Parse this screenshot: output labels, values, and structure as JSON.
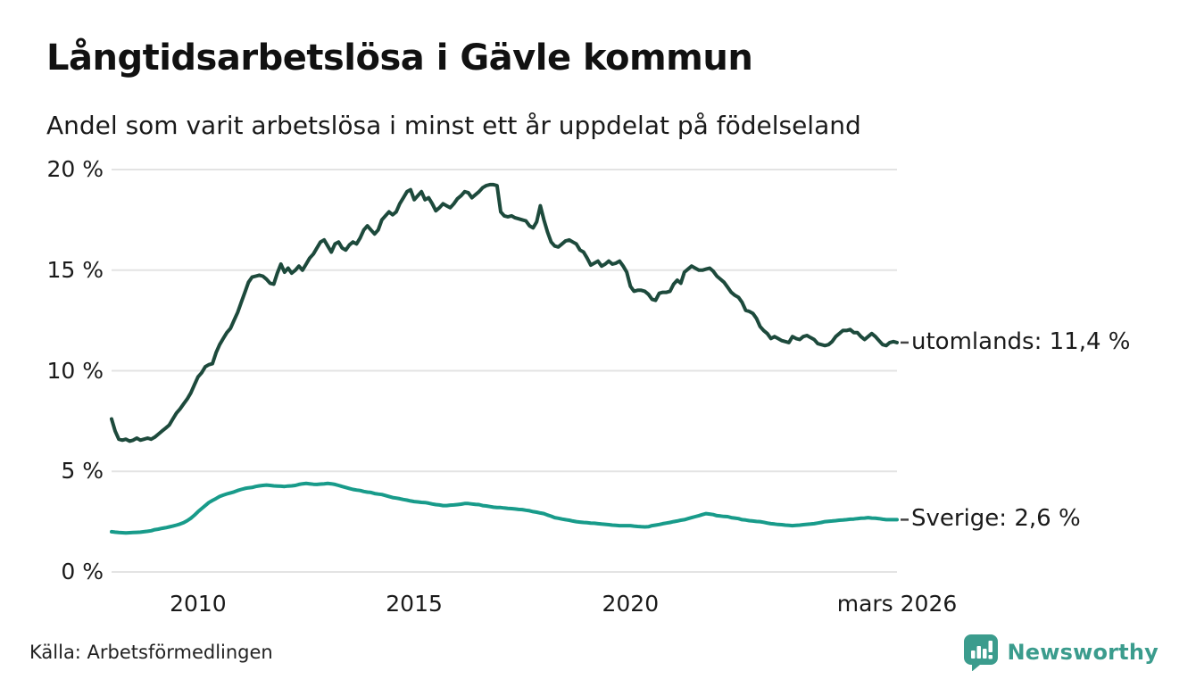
{
  "title": "Långtidsarbetslösa i Gävle kommun",
  "subtitle": "Andel som varit arbetslösa i minst ett år uppdelat på födelseland",
  "source": "Källa: Arbetsförmedlingen",
  "branding": {
    "name": "Newsworthy",
    "color": "#3b9c8d",
    "logo_icon": "bar-chart-pin-icon"
  },
  "chart_data": {
    "type": "line",
    "title": "Långtidsarbetslösa i Gävle kommun",
    "subtitle": "Andel som varit arbetslösa i minst ett år uppdelat på födelseland",
    "unit": "%",
    "grid": "horizontal",
    "grid_color": "#e3e3e3",
    "xlim": [
      2008.0,
      2026.1667
    ],
    "ylim": [
      0,
      20
    ],
    "x_frequency": "monthly",
    "x_start": 2008.0,
    "x_end_label": "mars 2026",
    "yticks": [
      {
        "value": 0,
        "label": "0 %"
      },
      {
        "value": 5,
        "label": "5 %"
      },
      {
        "value": 10,
        "label": "10 %"
      },
      {
        "value": 15,
        "label": "15 %"
      },
      {
        "value": 20,
        "label": "20 %"
      }
    ],
    "xticks": [
      {
        "x": 2010,
        "label": "2010"
      },
      {
        "x": 2015,
        "label": "2015"
      },
      {
        "x": 2020,
        "label": "2020"
      },
      {
        "x": 2026.1667,
        "label": "mars 2026"
      }
    ],
    "series": [
      {
        "name": "utomlands",
        "label": "utomlands: 11,4 %",
        "end_value": 11.4,
        "color": "#1d4a3c",
        "values": [
          7.6,
          7.0,
          6.6,
          6.55,
          6.6,
          6.5,
          6.55,
          6.65,
          6.55,
          6.6,
          6.65,
          6.6,
          6.7,
          6.85,
          7.0,
          7.15,
          7.3,
          7.6,
          7.9,
          8.1,
          8.35,
          8.6,
          8.9,
          9.3,
          9.7,
          9.9,
          10.2,
          10.3,
          10.35,
          10.9,
          11.3,
          11.6,
          11.9,
          12.1,
          12.5,
          12.9,
          13.4,
          13.9,
          14.4,
          14.65,
          14.7,
          14.75,
          14.7,
          14.55,
          14.35,
          14.3,
          14.85,
          15.3,
          14.9,
          15.1,
          14.85,
          15.0,
          15.2,
          15.0,
          15.3,
          15.6,
          15.8,
          16.1,
          16.4,
          16.5,
          16.2,
          15.9,
          16.3,
          16.4,
          16.1,
          16.0,
          16.25,
          16.4,
          16.3,
          16.6,
          17.0,
          17.2,
          17.0,
          16.8,
          17.0,
          17.5,
          17.7,
          17.9,
          17.75,
          17.9,
          18.3,
          18.6,
          18.9,
          19.0,
          18.5,
          18.7,
          18.9,
          18.5,
          18.6,
          18.3,
          17.95,
          18.1,
          18.3,
          18.2,
          18.1,
          18.3,
          18.55,
          18.7,
          18.9,
          18.85,
          18.6,
          18.75,
          18.9,
          19.1,
          19.2,
          19.25,
          19.25,
          19.2,
          17.9,
          17.7,
          17.65,
          17.7,
          17.6,
          17.55,
          17.5,
          17.45,
          17.2,
          17.1,
          17.4,
          18.2,
          17.5,
          16.9,
          16.4,
          16.2,
          16.15,
          16.3,
          16.45,
          16.5,
          16.4,
          16.3,
          16.0,
          15.9,
          15.6,
          15.25,
          15.35,
          15.45,
          15.2,
          15.3,
          15.45,
          15.3,
          15.35,
          15.45,
          15.2,
          14.9,
          14.2,
          13.95,
          14.0,
          14.0,
          13.95,
          13.8,
          13.55,
          13.5,
          13.85,
          13.9,
          13.9,
          13.95,
          14.3,
          14.5,
          14.35,
          14.9,
          15.05,
          15.2,
          15.1,
          15.0,
          15.0,
          15.05,
          15.1,
          14.95,
          14.7,
          14.55,
          14.4,
          14.15,
          13.9,
          13.75,
          13.65,
          13.4,
          13.0,
          12.95,
          12.85,
          12.6,
          12.2,
          12.0,
          11.85,
          11.6,
          11.7,
          11.6,
          11.5,
          11.45,
          11.4,
          11.7,
          11.6,
          11.55,
          11.7,
          11.75,
          11.65,
          11.55,
          11.35,
          11.3,
          11.25,
          11.3,
          11.45,
          11.7,
          11.85,
          12.0,
          12.0,
          12.05,
          11.9,
          11.9,
          11.7,
          11.55,
          11.7,
          11.85,
          11.7,
          11.5,
          11.3,
          11.25,
          11.4,
          11.45,
          11.4
        ]
      },
      {
        "name": "Sverige",
        "label": "Sverige:  2,6 %",
        "end_value": 2.6,
        "color": "#189b8a",
        "values": [
          2.0,
          1.98,
          1.96,
          1.95,
          1.94,
          1.95,
          1.96,
          1.97,
          1.98,
          2.0,
          2.02,
          2.05,
          2.1,
          2.13,
          2.17,
          2.2,
          2.24,
          2.28,
          2.33,
          2.38,
          2.45,
          2.55,
          2.67,
          2.82,
          3.0,
          3.15,
          3.3,
          3.45,
          3.55,
          3.65,
          3.75,
          3.82,
          3.88,
          3.93,
          3.98,
          4.05,
          4.1,
          4.15,
          4.18,
          4.2,
          4.25,
          4.28,
          4.3,
          4.32,
          4.3,
          4.28,
          4.27,
          4.26,
          4.25,
          4.27,
          4.28,
          4.3,
          4.35,
          4.38,
          4.4,
          4.38,
          4.36,
          4.35,
          4.37,
          4.38,
          4.4,
          4.38,
          4.35,
          4.3,
          4.25,
          4.2,
          4.15,
          4.1,
          4.07,
          4.05,
          4.0,
          3.97,
          3.95,
          3.9,
          3.87,
          3.85,
          3.8,
          3.75,
          3.7,
          3.67,
          3.64,
          3.6,
          3.57,
          3.53,
          3.5,
          3.48,
          3.46,
          3.45,
          3.42,
          3.38,
          3.35,
          3.33,
          3.3,
          3.3,
          3.32,
          3.33,
          3.35,
          3.37,
          3.4,
          3.4,
          3.38,
          3.36,
          3.35,
          3.3,
          3.28,
          3.25,
          3.22,
          3.2,
          3.2,
          3.18,
          3.16,
          3.15,
          3.13,
          3.11,
          3.1,
          3.07,
          3.04,
          3.0,
          2.97,
          2.93,
          2.9,
          2.83,
          2.77,
          2.7,
          2.67,
          2.63,
          2.6,
          2.57,
          2.53,
          2.5,
          2.48,
          2.46,
          2.45,
          2.43,
          2.42,
          2.4,
          2.38,
          2.37,
          2.35,
          2.33,
          2.32,
          2.3,
          2.3,
          2.3,
          2.3,
          2.28,
          2.26,
          2.25,
          2.24,
          2.25,
          2.3,
          2.33,
          2.36,
          2.4,
          2.43,
          2.46,
          2.5,
          2.53,
          2.57,
          2.6,
          2.65,
          2.7,
          2.75,
          2.8,
          2.85,
          2.9,
          2.88,
          2.85,
          2.8,
          2.78,
          2.76,
          2.75,
          2.7,
          2.68,
          2.65,
          2.6,
          2.58,
          2.55,
          2.53,
          2.51,
          2.5,
          2.47,
          2.43,
          2.4,
          2.38,
          2.36,
          2.35,
          2.33,
          2.32,
          2.3,
          2.32,
          2.33,
          2.35,
          2.37,
          2.38,
          2.4,
          2.43,
          2.46,
          2.5,
          2.52,
          2.53,
          2.55,
          2.57,
          2.58,
          2.6,
          2.62,
          2.63,
          2.65,
          2.67,
          2.68,
          2.7,
          2.68,
          2.67,
          2.65,
          2.62,
          2.6,
          2.6,
          2.6,
          2.6
        ]
      }
    ]
  }
}
